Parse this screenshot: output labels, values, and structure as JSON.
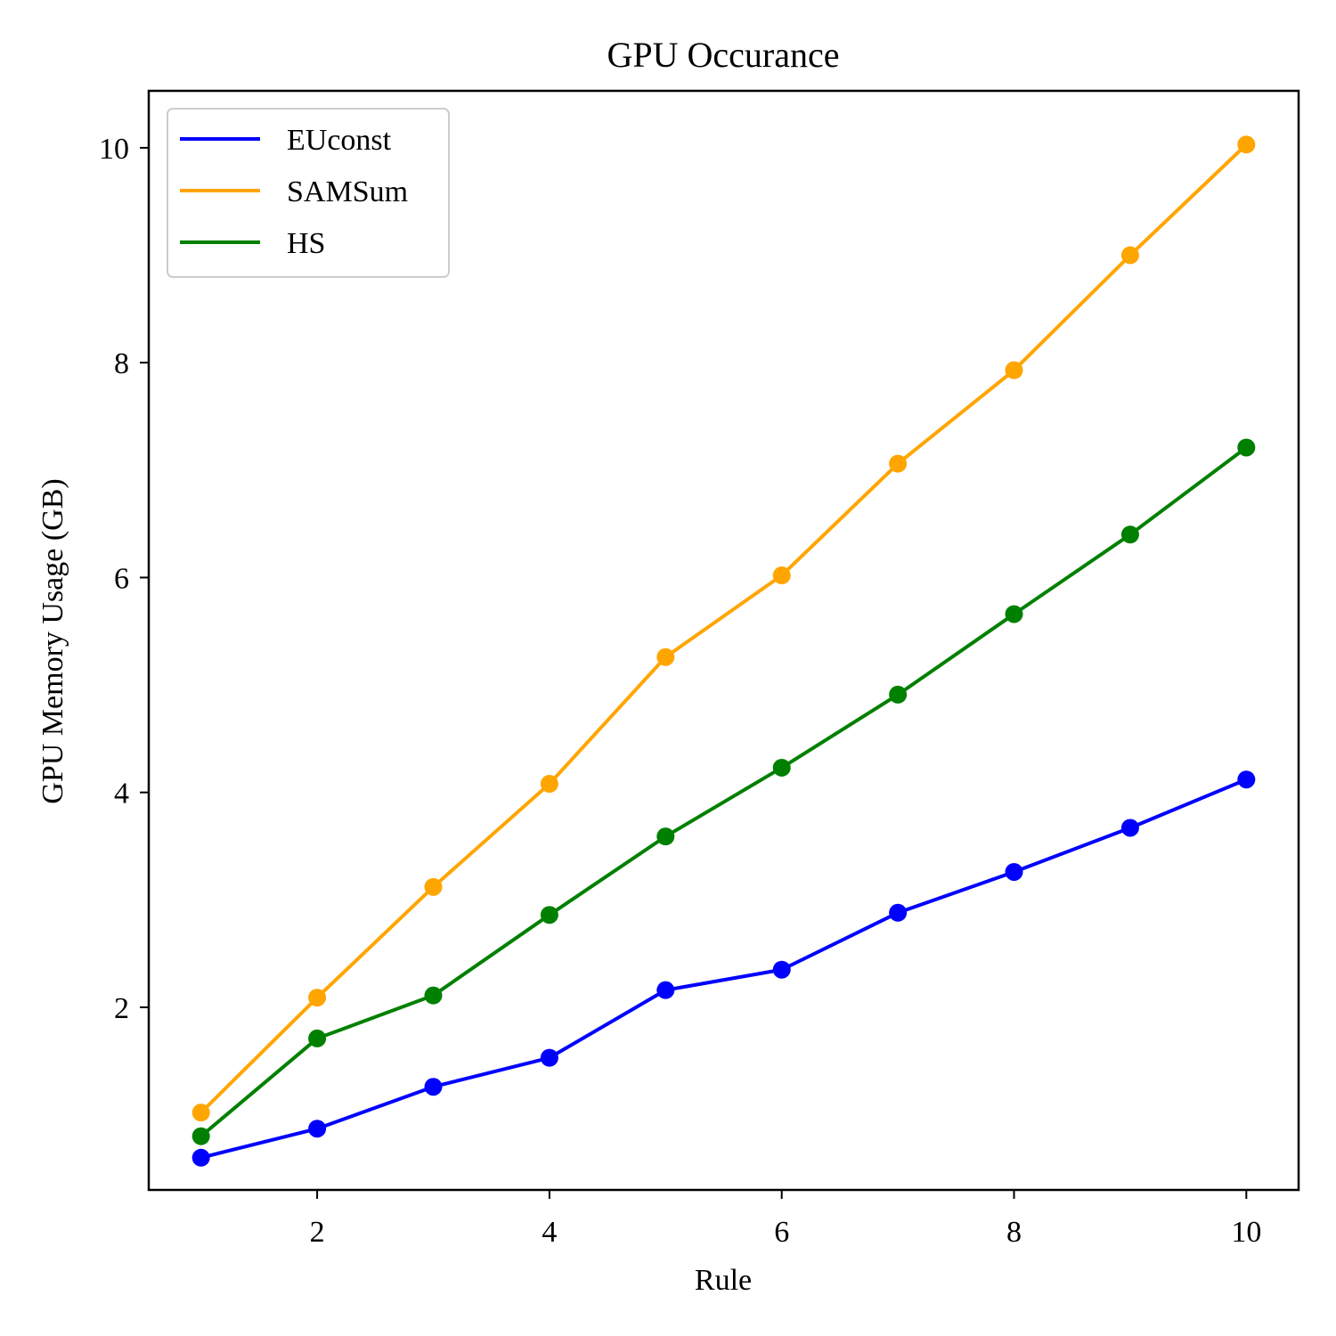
{
  "chart_data": {
    "type": "line",
    "title": "GPU Occurance",
    "xlabel": "Rule",
    "ylabel": "GPU Memory Usage (GB)",
    "x": [
      1,
      2,
      3,
      4,
      5,
      6,
      7,
      8,
      9,
      10
    ],
    "xlim": [
      0.55,
      10.45
    ],
    "ylim": [
      0.3,
      10.53
    ],
    "xticks": [
      2,
      4,
      6,
      8,
      10
    ],
    "yticks": [
      2,
      4,
      6,
      8,
      10
    ],
    "grid": false,
    "legend_position": "upper left",
    "series": [
      {
        "name": "EUconst",
        "color": "#0000ff",
        "values": [
          0.6,
          0.87,
          1.26,
          1.53,
          2.16,
          2.35,
          2.88,
          3.26,
          3.67,
          4.12
        ]
      },
      {
        "name": "SAMSum",
        "color": "#ffa500",
        "values": [
          1.02,
          2.09,
          3.12,
          4.08,
          5.26,
          6.02,
          7.06,
          7.93,
          9.0,
          10.03
        ]
      },
      {
        "name": "HS",
        "color": "#008000",
        "values": [
          0.8,
          1.71,
          2.11,
          2.86,
          3.59,
          4.23,
          4.91,
          5.66,
          6.4,
          7.21
        ]
      }
    ]
  }
}
